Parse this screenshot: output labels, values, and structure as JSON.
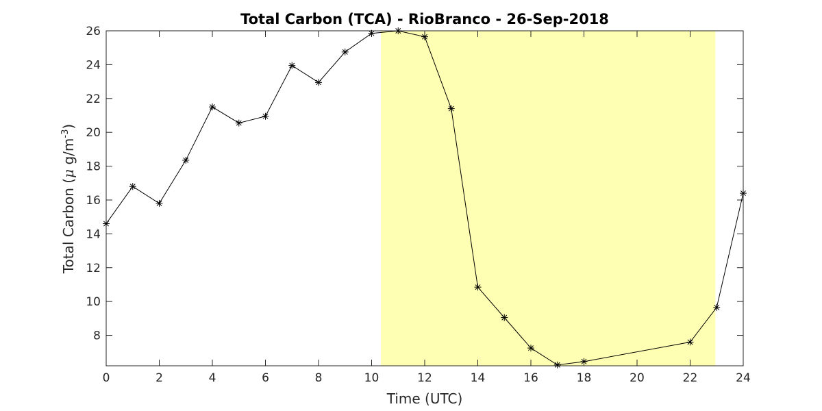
{
  "chart_data": {
    "type": "line",
    "title": "Total Carbon (TCA) - RioBranco - 26-Sep-2018",
    "xlabel": "Time (UTC)",
    "ylabel": {
      "prefix": "Total Carbon (",
      "mu": "μ",
      "unit": " g/m",
      "superscript": "-3",
      "suffix": ")"
    },
    "xlim": [
      0,
      24
    ],
    "ylim": [
      6.2,
      26
    ],
    "xticks": [
      "0",
      "2",
      "4",
      "6",
      "8",
      "10",
      "12",
      "14",
      "16",
      "18",
      "20",
      "22",
      "24"
    ],
    "yticks": [
      "8",
      "10",
      "12",
      "14",
      "16",
      "18",
      "20",
      "22",
      "24",
      "26"
    ],
    "highlight": {
      "x_start": 10.35,
      "x_end": 22.95,
      "color": "#ffffb3"
    },
    "marker": "asterisk",
    "line_color": "#000000",
    "grid": false,
    "series": [
      {
        "x": [
          0,
          1,
          2,
          3,
          4,
          5,
          6,
          7,
          8,
          9,
          10,
          11,
          12,
          13,
          14,
          15,
          16,
          17,
          18,
          22,
          23,
          24
        ],
        "values": [
          14.6,
          16.8,
          15.8,
          18.35,
          21.5,
          20.55,
          20.95,
          23.95,
          22.95,
          24.75,
          25.85,
          26.0,
          25.65,
          21.4,
          10.85,
          9.05,
          7.25,
          6.25,
          6.45,
          7.6,
          9.65,
          16.4
        ]
      }
    ]
  }
}
